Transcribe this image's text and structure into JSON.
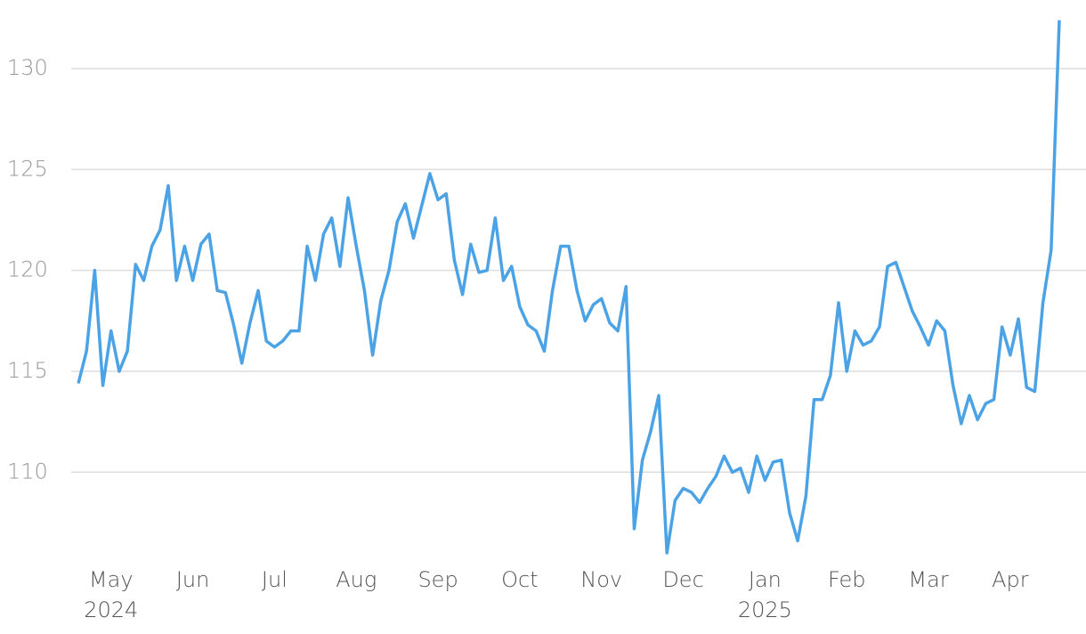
{
  "chart_data": {
    "type": "line",
    "categories": [
      null,
      null,
      null,
      null,
      "May 2024",
      null,
      null,
      null,
      null,
      null,
      null,
      null,
      null,
      null,
      "Jun",
      null,
      null,
      null,
      null,
      null,
      null,
      null,
      null,
      null,
      "Jul",
      null,
      null,
      null,
      null,
      null,
      null,
      null,
      null,
      null,
      "Aug",
      null,
      null,
      null,
      null,
      null,
      null,
      null,
      null,
      null,
      "Sep",
      null,
      null,
      null,
      null,
      null,
      null,
      null,
      null,
      null,
      "Oct",
      null,
      null,
      null,
      null,
      null,
      null,
      null,
      null,
      null,
      "Nov",
      null,
      null,
      null,
      null,
      null,
      null,
      null,
      null,
      null,
      "Dec",
      null,
      null,
      null,
      null,
      null,
      null,
      null,
      null,
      null,
      "Jan 2025",
      null,
      null,
      null,
      null,
      null,
      null,
      null,
      null,
      null,
      "Feb",
      null,
      null,
      null,
      null,
      null,
      null,
      null,
      null,
      null,
      "Mar",
      null,
      null,
      null,
      null,
      null,
      null,
      null,
      null,
      null,
      "Apr",
      null,
      null,
      null,
      null,
      null,
      null
    ],
    "values": [
      114.4,
      116.0,
      120.0,
      114.3,
      117.0,
      115.0,
      116.0,
      120.3,
      119.5,
      121.2,
      122.0,
      124.2,
      119.5,
      121.2,
      119.5,
      121.3,
      121.8,
      119.0,
      118.9,
      117.3,
      115.4,
      117.4,
      119.0,
      116.5,
      116.2,
      116.5,
      117.0,
      117.0,
      121.2,
      119.5,
      121.8,
      122.6,
      120.2,
      123.6,
      121.2,
      119.0,
      115.8,
      118.5,
      120.0,
      122.4,
      123.3,
      121.6,
      123.2,
      124.8,
      123.5,
      123.8,
      120.5,
      118.8,
      121.3,
      119.9,
      120.0,
      122.6,
      119.5,
      120.2,
      118.2,
      117.3,
      117.0,
      116.0,
      119.0,
      121.2,
      121.2,
      119.0,
      117.5,
      118.3,
      118.6,
      117.4,
      117.0,
      119.2,
      107.2,
      110.6,
      112.0,
      113.8,
      106.0,
      108.6,
      109.2,
      109.0,
      108.5,
      109.2,
      109.8,
      110.8,
      110.0,
      110.2,
      109.0,
      110.8,
      109.6,
      110.5,
      110.6,
      108.0,
      106.6,
      108.8,
      113.6,
      113.6,
      114.8,
      118.4,
      115.0,
      117.0,
      116.3,
      116.5,
      117.2,
      120.2,
      120.4,
      119.2,
      118.0,
      117.2,
      116.3,
      117.5,
      117.0,
      114.3,
      112.4,
      113.8,
      112.6,
      113.4,
      113.6,
      117.2,
      115.8,
      117.6,
      114.2,
      114.0,
      118.4,
      121.0,
      132.4
    ],
    "color": "#4ba3e6",
    "ylim": [
      105.6,
      133.4
    ],
    "yticks": [
      110,
      115,
      120,
      125,
      130
    ],
    "grid": true
  }
}
